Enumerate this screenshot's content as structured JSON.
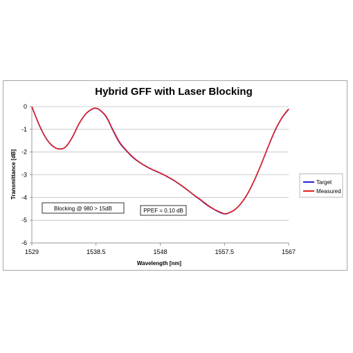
{
  "chart_data": {
    "type": "line",
    "title": "Hybrid GFF with Laser Blocking",
    "xlabel": "Wavelength [nm]",
    "ylabel": "Transmittance [dB]",
    "xlim": [
      1529,
      1567
    ],
    "ylim": [
      -6,
      0
    ],
    "xticks": [
      1529,
      1538.5,
      1548,
      1557.5,
      1567
    ],
    "xtick_labels": [
      "1529",
      "1538.5",
      "1548",
      "1557.5",
      "1567"
    ],
    "yticks": [
      0,
      -1,
      -2,
      -3,
      -4,
      -5,
      -6
    ],
    "ytick_labels": [
      "0",
      "-1",
      "-2",
      "-3",
      "-4",
      "-5",
      "-6"
    ],
    "grid": "horizontal",
    "legend_position": "right",
    "annotations": [
      "Blocking @ 980 > 15dB",
      "PPEF = 0.10 dB"
    ],
    "series": [
      {
        "name": "Target",
        "color": "#1f1fd6",
        "x": [
          1529,
          1530,
          1531,
          1532,
          1533,
          1534,
          1535,
          1536,
          1537,
          1538,
          1538.5,
          1539,
          1540,
          1541,
          1542,
          1543,
          1544,
          1545,
          1546,
          1547,
          1548,
          1549,
          1550,
          1551,
          1552,
          1553,
          1554,
          1555,
          1556,
          1557,
          1557.5,
          1558,
          1559,
          1560,
          1561,
          1562,
          1563,
          1564,
          1565,
          1566,
          1567
        ],
        "y": [
          0,
          -0.75,
          -1.35,
          -1.72,
          -1.86,
          -1.78,
          -1.35,
          -0.75,
          -0.32,
          -0.1,
          -0.08,
          -0.14,
          -0.45,
          -1.05,
          -1.6,
          -1.95,
          -2.25,
          -2.47,
          -2.65,
          -2.8,
          -2.93,
          -3.08,
          -3.25,
          -3.45,
          -3.67,
          -3.9,
          -4.12,
          -4.35,
          -4.53,
          -4.68,
          -4.72,
          -4.7,
          -4.55,
          -4.25,
          -3.8,
          -3.2,
          -2.5,
          -1.75,
          -1.05,
          -0.5,
          -0.12
        ]
      },
      {
        "name": "Measured",
        "color": "#e02020",
        "x": [
          1529,
          1530,
          1531,
          1532,
          1533,
          1534,
          1535,
          1536,
          1537,
          1538,
          1538.5,
          1539,
          1540,
          1541,
          1542,
          1543,
          1544,
          1545,
          1546,
          1547,
          1548,
          1549,
          1550,
          1551,
          1552,
          1553,
          1554,
          1555,
          1556,
          1557,
          1557.5,
          1558,
          1559,
          1560,
          1561,
          1562,
          1563,
          1564,
          1565,
          1566,
          1567
        ],
        "y": [
          0,
          -0.74,
          -1.34,
          -1.71,
          -1.87,
          -1.77,
          -1.34,
          -0.74,
          -0.31,
          -0.09,
          -0.07,
          -0.13,
          -0.43,
          -1.02,
          -1.57,
          -1.93,
          -2.23,
          -2.46,
          -2.64,
          -2.79,
          -2.92,
          -3.07,
          -3.24,
          -3.44,
          -3.66,
          -3.89,
          -4.1,
          -4.33,
          -4.52,
          -4.66,
          -4.71,
          -4.69,
          -4.54,
          -4.24,
          -3.79,
          -3.19,
          -2.49,
          -1.74,
          -1.04,
          -0.49,
          -0.1
        ]
      }
    ]
  }
}
